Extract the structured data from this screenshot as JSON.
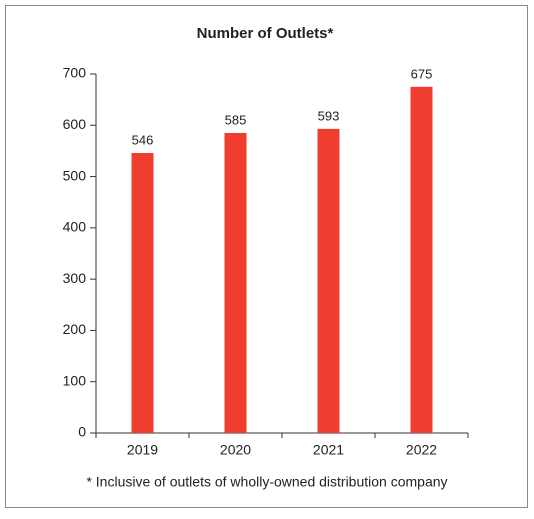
{
  "chart_data": {
    "type": "bar",
    "title": "Number of Outlets*",
    "categories": [
      "2019",
      "2020",
      "2021",
      "2022"
    ],
    "values": [
      546,
      585,
      593,
      675
    ],
    "color": "#ef3e2f",
    "ylim": [
      0,
      700
    ],
    "yticks": [
      0,
      100,
      200,
      300,
      400,
      500,
      600,
      700
    ],
    "footnote": "* Inclusive of outlets of wholly-owned distribution company"
  }
}
